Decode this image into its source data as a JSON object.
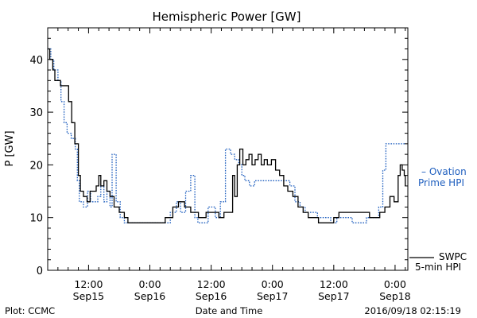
{
  "chart_data": {
    "type": "line",
    "title": "Hemispheric Power [GW]",
    "ylabel": "P [GW]",
    "xlabel": "Date and Time",
    "ylim": [
      0,
      46
    ],
    "yticks": [
      0,
      10,
      20,
      30,
      40
    ],
    "xlim_hours": [
      -20,
      2.5
    ],
    "xticks": [
      {
        "h": -12,
        "time": "12:00",
        "date": "Sep15"
      },
      {
        "h": 0,
        "time": "0:00",
        "date": "Sep16"
      },
      {
        "h": 12,
        "time": "12:00",
        "date": "Sep16"
      },
      {
        "h": 24,
        "time": "0:00",
        "date": "Sep17"
      },
      {
        "h": 36,
        "time": "12:00",
        "date": "Sep17"
      },
      {
        "h": 48,
        "time": "0:00",
        "date": "Sep18"
      }
    ],
    "series": [
      {
        "name": "SWPC 5-min HPI",
        "color": "#000000",
        "points": [
          [
            -20.0,
            42
          ],
          [
            -19.6,
            40
          ],
          [
            -19.0,
            38
          ],
          [
            -18.6,
            36
          ],
          [
            -17.5,
            35
          ],
          [
            -16.5,
            35
          ],
          [
            -15.9,
            32
          ],
          [
            -15.3,
            28
          ],
          [
            -14.7,
            24
          ],
          [
            -14.0,
            18
          ],
          [
            -13.6,
            15
          ],
          [
            -13.0,
            14
          ],
          [
            -12.3,
            13
          ],
          [
            -11.7,
            15
          ],
          [
            -11.0,
            15
          ],
          [
            -10.5,
            16
          ],
          [
            -10.0,
            18
          ],
          [
            -9.6,
            16
          ],
          [
            -9.0,
            17
          ],
          [
            -8.4,
            15
          ],
          [
            -7.8,
            14
          ],
          [
            -7.0,
            12
          ],
          [
            -6.0,
            11
          ],
          [
            -5.0,
            10
          ],
          [
            -4.3,
            9
          ],
          [
            -3.2,
            9
          ],
          [
            -2.0,
            9
          ],
          [
            -1.0,
            9
          ],
          [
            0.0,
            9
          ],
          [
            1.0,
            9
          ],
          [
            2.0,
            9
          ],
          [
            3.0,
            10
          ],
          [
            4.5,
            12
          ],
          [
            5.6,
            13
          ],
          [
            6.8,
            12
          ],
          [
            8.0,
            11
          ],
          [
            9.5,
            10
          ],
          [
            11.0,
            11
          ],
          [
            12.5,
            11
          ],
          [
            13.5,
            10
          ],
          [
            14.5,
            11
          ],
          [
            15.5,
            11
          ],
          [
            16.2,
            18
          ],
          [
            16.6,
            14
          ],
          [
            17.1,
            20
          ],
          [
            17.6,
            23
          ],
          [
            18.2,
            20
          ],
          [
            18.8,
            21
          ],
          [
            19.4,
            22
          ],
          [
            20.0,
            20
          ],
          [
            20.6,
            21
          ],
          [
            21.2,
            22
          ],
          [
            21.8,
            20
          ],
          [
            22.4,
            21
          ],
          [
            23.0,
            20
          ],
          [
            23.8,
            21
          ],
          [
            24.6,
            19
          ],
          [
            25.4,
            18
          ],
          [
            26.2,
            16
          ],
          [
            27.0,
            15
          ],
          [
            28.0,
            14
          ],
          [
            29.0,
            12
          ],
          [
            30.0,
            11
          ],
          [
            31.0,
            10
          ],
          [
            32.0,
            10
          ],
          [
            33.0,
            9
          ],
          [
            34.5,
            9
          ],
          [
            36.0,
            10
          ],
          [
            37.0,
            11
          ],
          [
            39.0,
            11
          ],
          [
            41.0,
            11
          ],
          [
            43.0,
            10
          ],
          [
            44.0,
            10
          ],
          [
            45.0,
            11
          ],
          [
            46.0,
            12
          ],
          [
            47.0,
            14
          ],
          [
            47.8,
            13
          ],
          [
            48.6,
            18
          ],
          [
            49.0,
            20
          ],
          [
            49.4,
            19
          ],
          [
            49.8,
            18
          ],
          [
            50.0,
            16
          ]
        ]
      },
      {
        "name": "Ovation Prime HPI",
        "color": "#1f5fbf",
        "points": [
          [
            -20.0,
            42
          ],
          [
            -19.4,
            40
          ],
          [
            -18.8,
            38
          ],
          [
            -18.0,
            36
          ],
          [
            -17.4,
            32
          ],
          [
            -16.8,
            28
          ],
          [
            -16.2,
            26
          ],
          [
            -15.4,
            25
          ],
          [
            -14.6,
            23
          ],
          [
            -14.2,
            17
          ],
          [
            -13.8,
            13
          ],
          [
            -13.0,
            12
          ],
          [
            -12.2,
            15
          ],
          [
            -11.6,
            13
          ],
          [
            -10.8,
            13
          ],
          [
            -10.2,
            14
          ],
          [
            -9.6,
            16
          ],
          [
            -9.0,
            13
          ],
          [
            -8.4,
            15
          ],
          [
            -7.8,
            12
          ],
          [
            -7.4,
            22
          ],
          [
            -6.6,
            13
          ],
          [
            -5.8,
            10
          ],
          [
            -5.0,
            9
          ],
          [
            -3.0,
            9
          ],
          [
            -1.0,
            9
          ],
          [
            1.0,
            9
          ],
          [
            2.0,
            9
          ],
          [
            3.0,
            9
          ],
          [
            4.0,
            11
          ],
          [
            5.2,
            13
          ],
          [
            6.0,
            11
          ],
          [
            7.0,
            15
          ],
          [
            8.0,
            18
          ],
          [
            8.8,
            10
          ],
          [
            9.4,
            9
          ],
          [
            10.4,
            9
          ],
          [
            11.4,
            12
          ],
          [
            12.8,
            10
          ],
          [
            13.8,
            13
          ],
          [
            14.8,
            23
          ],
          [
            15.8,
            22
          ],
          [
            16.6,
            21
          ],
          [
            17.4,
            20
          ],
          [
            18.0,
            18
          ],
          [
            18.6,
            17
          ],
          [
            19.5,
            16
          ],
          [
            20.5,
            17
          ],
          [
            22.0,
            17
          ],
          [
            24.0,
            17
          ],
          [
            26.0,
            17
          ],
          [
            27.4,
            16
          ],
          [
            28.4,
            13
          ],
          [
            29.4,
            12
          ],
          [
            30.4,
            11
          ],
          [
            31.6,
            11
          ],
          [
            32.8,
            10
          ],
          [
            34.0,
            10
          ],
          [
            35.4,
            9
          ],
          [
            36.6,
            10
          ],
          [
            38.0,
            10
          ],
          [
            39.6,
            9
          ],
          [
            41.0,
            9
          ],
          [
            42.4,
            10
          ],
          [
            43.6,
            10
          ],
          [
            44.8,
            12
          ],
          [
            45.6,
            19
          ],
          [
            46.2,
            24
          ],
          [
            47.0,
            24
          ],
          [
            48.4,
            24
          ],
          [
            50.0,
            24
          ]
        ]
      }
    ],
    "legend": {
      "ovation_line1": "– Ovation",
      "ovation_line2": "Prime HPI",
      "swpc_line1": "SWPC",
      "swpc_line2": "5-min HPI"
    },
    "footer": {
      "plot_credit": "Plot: CCMC",
      "timestamp": "2016/09/18 02:15:19"
    }
  }
}
